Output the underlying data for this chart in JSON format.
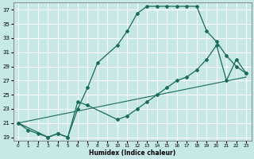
{
  "xlabel": "Humidex (Indice chaleur)",
  "bg_color": "#c6e8e6",
  "grid_color": "#ffffff",
  "line_color": "#1a6b5a",
  "xlim": [
    -0.5,
    23.5
  ],
  "ylim": [
    18.5,
    38.0
  ],
  "yticks": [
    19,
    21,
    23,
    25,
    27,
    29,
    31,
    33,
    35,
    37
  ],
  "xticks": [
    0,
    1,
    2,
    3,
    4,
    5,
    6,
    7,
    8,
    9,
    10,
    11,
    12,
    13,
    14,
    15,
    16,
    17,
    18,
    19,
    20,
    21,
    22,
    23
  ],
  "line1_x": [
    0,
    1,
    2,
    3,
    4,
    5,
    6,
    7,
    8,
    10,
    11,
    12,
    13,
    14,
    15,
    16,
    17,
    18,
    19,
    20,
    21,
    22,
    23
  ],
  "line1_y": [
    21,
    20,
    19.5,
    19,
    19.5,
    19,
    23,
    26,
    29.5,
    32,
    34,
    36.5,
    37.5,
    37.5,
    37.5,
    37.5,
    37.5,
    37.5,
    34,
    32.5,
    30.5,
    29,
    28
  ],
  "line2_x": [
    0,
    3,
    4,
    5,
    6,
    7,
    10,
    11,
    12,
    13,
    14,
    15,
    16,
    17,
    18,
    19,
    20,
    21,
    22,
    23
  ],
  "line2_y": [
    21,
    19,
    19.5,
    19,
    24,
    23.5,
    21.5,
    22,
    23,
    24,
    25,
    26,
    27,
    27.5,
    28.5,
    30,
    32,
    27,
    30,
    28
  ],
  "line3_x": [
    0,
    23
  ],
  "line3_y": [
    21,
    27.5
  ]
}
